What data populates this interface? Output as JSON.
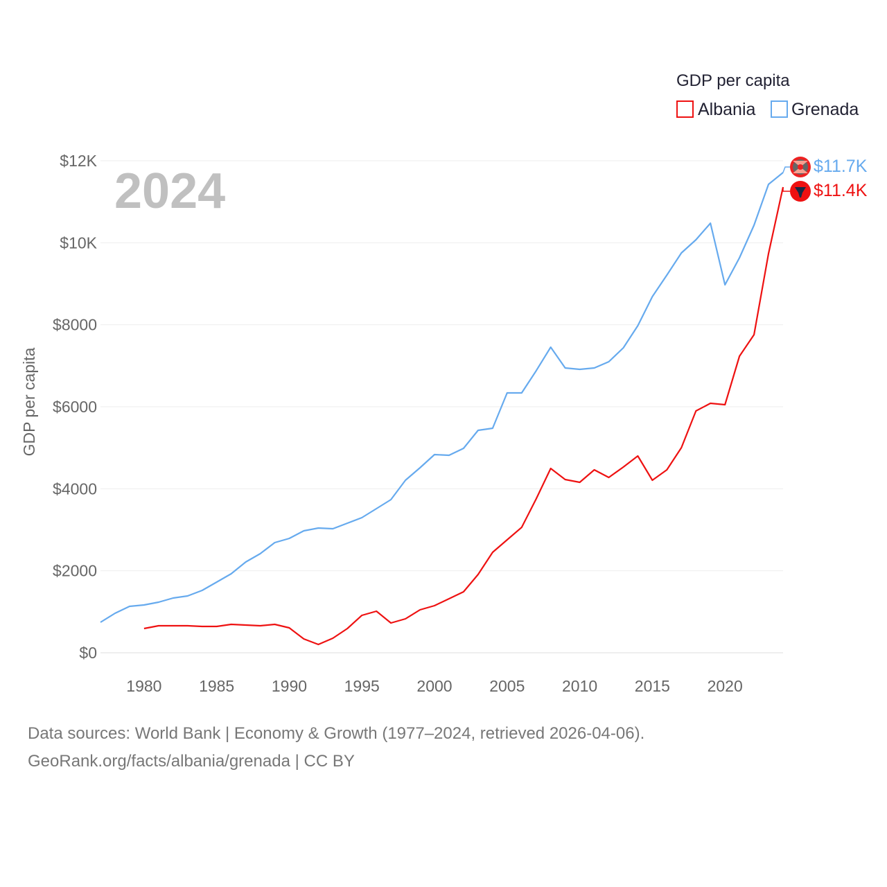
{
  "chart_data": {
    "type": "line",
    "year_label": "2024",
    "ylabel": "GDP per capita",
    "xlabel": "",
    "legend": {
      "title": "GDP per capita",
      "placement": "top-right"
    },
    "xlim": [
      1977,
      2024
    ],
    "ylim": [
      0,
      12000
    ],
    "yticks": [
      0,
      2000,
      4000,
      6000,
      8000,
      10000,
      12000
    ],
    "ytick_labels": [
      "$0",
      "$2000",
      "$4000",
      "$6000",
      "$8000",
      "$10K",
      "$12K"
    ],
    "xticks": [
      1980,
      1985,
      1990,
      1995,
      2000,
      2005,
      2010,
      2015,
      2020
    ],
    "xtick_labels": [
      "1980",
      "1985",
      "1990",
      "1995",
      "2000",
      "2005",
      "2010",
      "2015",
      "2020"
    ],
    "grid": true,
    "series": [
      {
        "name": "Albania",
        "color": "#ee1111",
        "end_label": "$11.4K",
        "start_year": 1980,
        "values": [
          592,
          659,
          659,
          659,
          642,
          642,
          693,
          676,
          659,
          693,
          608,
          338,
          203,
          355,
          592,
          913,
          1014,
          727,
          828,
          1048,
          1149,
          1318,
          1487,
          1910,
          2451,
          2755,
          3059,
          3752,
          4496,
          4225,
          4158,
          4462,
          4276,
          4530,
          4800,
          4208,
          4462,
          5003,
          5898,
          6084,
          6050,
          7233,
          7757,
          9735,
          11357
        ]
      },
      {
        "name": "Grenada",
        "color": "#66aaee",
        "end_label": "$11.7K",
        "start_year": 1977,
        "values": [
          744,
          963,
          1132,
          1166,
          1234,
          1335,
          1386,
          1521,
          1724,
          1927,
          2214,
          2417,
          2687,
          2789,
          2974,
          3042,
          3025,
          3160,
          3296,
          3515,
          3735,
          4208,
          4512,
          4834,
          4817,
          4986,
          5425,
          5476,
          6338,
          6338,
          6878,
          7453,
          6946,
          6912,
          6946,
          7098,
          7436,
          7977,
          8687,
          9211,
          9752,
          10073,
          10478,
          8974,
          9633,
          10428,
          11425,
          11712
        ]
      }
    ]
  },
  "footer": {
    "line1": "Data sources: World Bank | Economy & Growth (1977–2024, retrieved 2026-04-06).",
    "line2": "GeoRank.org/facts/albania/grenada | CC BY"
  }
}
